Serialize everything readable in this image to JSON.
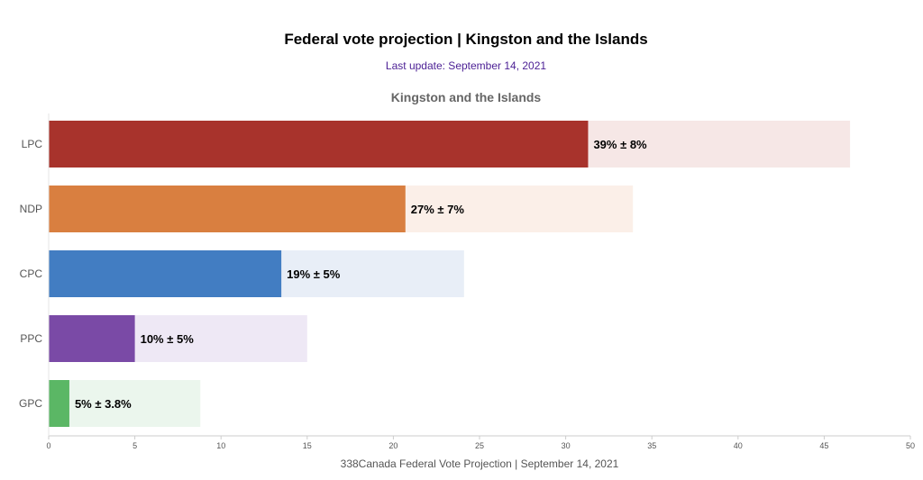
{
  "chart_data": {
    "type": "bar",
    "orientation": "horizontal",
    "title": "Federal vote projection | Kingston and the Islands",
    "subtitle": "Last update: September 14, 2021",
    "panel_title": "Kingston and the Islands",
    "xlabel": "338Canada Federal Vote Projection | September 14, 2021",
    "xlim": [
      0,
      50
    ],
    "xticks": [
      0,
      5,
      10,
      15,
      20,
      25,
      30,
      35,
      40,
      45,
      50
    ],
    "categories": [
      "LPC",
      "NDP",
      "CPC",
      "PPC",
      "GPC"
    ],
    "values": [
      31.3,
      20.7,
      13.5,
      5.0,
      1.2
    ],
    "range_max": [
      46.5,
      33.9,
      24.1,
      15.0,
      8.8
    ],
    "labels": [
      "39% ± 8%",
      "27% ± 7%",
      "19% ± 5%",
      "10% ± 5%",
      "5% ± 3.8%"
    ],
    "colors": [
      "#a8332c",
      "#d97f40",
      "#427dc2",
      "#7a4aa6",
      "#5bb765"
    ],
    "range_colors": [
      "#f6e7e6",
      "#fbefe8",
      "#e8eef7",
      "#eee8f5",
      "#ebf6ed"
    ],
    "subtitle_color": "#4b1f94",
    "grid": false
  }
}
